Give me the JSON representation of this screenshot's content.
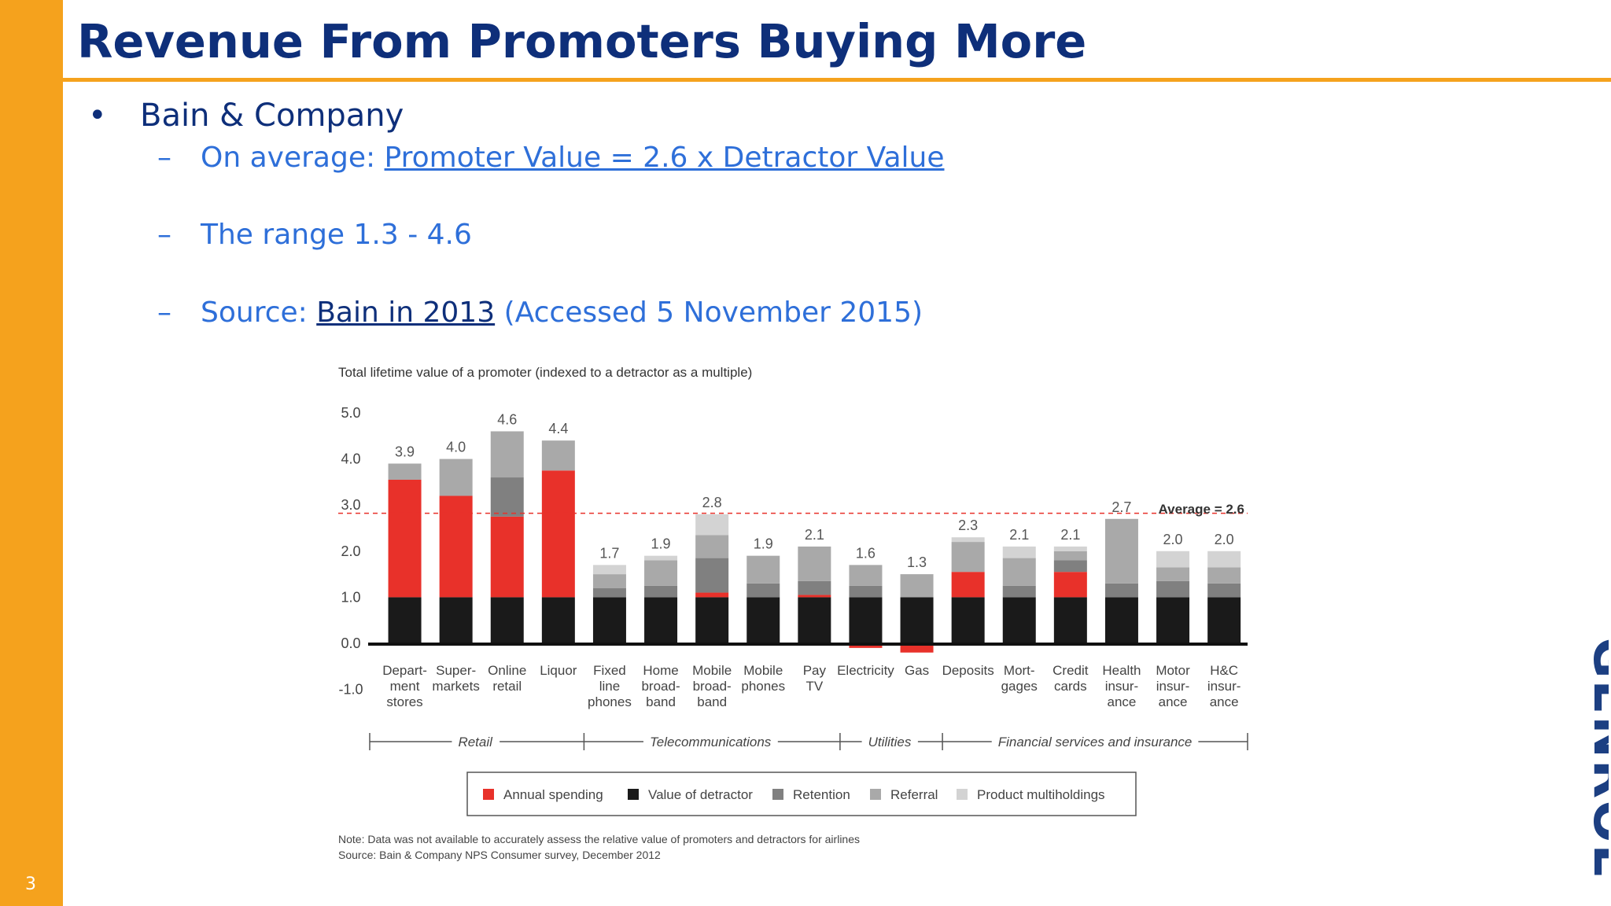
{
  "slide": {
    "title": "Revenue From Promoters Buying More",
    "page_number": "3",
    "accent_color": "#F5A21D",
    "title_color": "#0E2F7A",
    "bullet": "Bain & Company",
    "sub1_prefix": "On average: ",
    "sub1_link": "Promoter Value = 2.6 x Detractor Value",
    "sub2": "The range 1.3 - 4.6",
    "sub3_prefix": "Source: ",
    "sub3_link": "Bain in 2013",
    "sub3_suffix": " (Accessed 5 November 2015)",
    "bullet_marker": "•",
    "dash_marker": "–",
    "logo_text": "GENROE"
  },
  "chart_data": {
    "type": "bar",
    "stacked": true,
    "title": "Total lifetime value of a promoter (indexed to a detractor as a multiple)",
    "ylim": [
      -1.0,
      5.0
    ],
    "yticks": [
      "5.0",
      "4.0",
      "3.0",
      "2.0",
      "1.0",
      "0.0",
      "-1.0"
    ],
    "grid": false,
    "legend_position": "bottom",
    "average": {
      "value": 2.6,
      "label": "Average = 2.6"
    },
    "categories": [
      "Depart- ment stores",
      "Super- markets",
      "Online retail",
      "Liquor",
      "Fixed line phones",
      "Home broad- band",
      "Mobile broad- band",
      "Mobile phones",
      "Pay TV",
      "Electricity",
      "Gas",
      "Deposits",
      "Mort- gages",
      "Credit cards",
      "Health insur- ance",
      "Motor insur- ance",
      "H&C insur- ance"
    ],
    "category_lines": [
      [
        "Depart-",
        "ment",
        "stores"
      ],
      [
        "Super-",
        "markets"
      ],
      [
        "Online",
        "retail"
      ],
      [
        "Liquor"
      ],
      [
        "Fixed",
        "line",
        "phones"
      ],
      [
        "Home",
        "broad-",
        "band"
      ],
      [
        "Mobile",
        "broad-",
        "band"
      ],
      [
        "Mobile",
        "phones"
      ],
      [
        "Pay",
        "TV"
      ],
      [
        "Electricity"
      ],
      [
        "Gas"
      ],
      [
        "Deposits"
      ],
      [
        "Mort-",
        "gages"
      ],
      [
        "Credit",
        "cards"
      ],
      [
        "Health",
        "insur-",
        "ance"
      ],
      [
        "Motor",
        "insur-",
        "ance"
      ],
      [
        "H&C",
        "insur-",
        "ance"
      ]
    ],
    "totals": [
      "3.9",
      "4.0",
      "4.6",
      "4.4",
      "1.7",
      "1.9",
      "2.8",
      "1.9",
      "2.1",
      "1.6",
      "1.3",
      "2.3",
      "2.1",
      "2.1",
      "2.7",
      "2.0",
      "2.0"
    ],
    "series": [
      {
        "name": "Value of detractor",
        "color": "#1a1a1a",
        "values": [
          1.0,
          1.0,
          1.0,
          1.0,
          1.0,
          1.0,
          1.0,
          1.0,
          1.0,
          1.0,
          1.0,
          1.0,
          1.0,
          1.0,
          1.0,
          1.0,
          1.0
        ]
      },
      {
        "name": "Annual spending",
        "color": "#E8312A",
        "values": [
          2.55,
          2.2,
          1.75,
          2.75,
          0,
          0,
          0.1,
          0,
          0.05,
          -0.1,
          -0.2,
          0.55,
          0,
          0.55,
          0,
          0,
          0
        ]
      },
      {
        "name": "Retention",
        "color": "#808080",
        "values": [
          0,
          0,
          0.85,
          0,
          0.2,
          0.25,
          0.75,
          0.3,
          0.3,
          0.25,
          0,
          0,
          0.25,
          0.25,
          0.3,
          0.35,
          0.3
        ]
      },
      {
        "name": "Referral",
        "color": "#A9A9A9",
        "values": [
          0.35,
          0.8,
          1.0,
          0.65,
          0.3,
          0.55,
          0.5,
          0.6,
          0.75,
          0.45,
          0.5,
          0.65,
          0.6,
          0.2,
          1.4,
          0.3,
          0.35
        ]
      },
      {
        "name": "Product multiholdings",
        "color": "#D3D3D3",
        "values": [
          0,
          0,
          0,
          0,
          0.2,
          0.1,
          0.45,
          0,
          0,
          0,
          0,
          0.1,
          0.25,
          0.1,
          0,
          0.35,
          0.35
        ]
      }
    ],
    "legend_order": [
      "Annual spending",
      "Value of detractor",
      "Retention",
      "Referral",
      "Product multiholdings"
    ],
    "groups": [
      {
        "label": "Retail",
        "from": 0,
        "to": 3
      },
      {
        "label": "Telecommunications",
        "from": 4,
        "to": 8
      },
      {
        "label": "Utilities",
        "from": 9,
        "to": 10
      },
      {
        "label": "Financial services and insurance",
        "from": 11,
        "to": 16
      }
    ],
    "notes": [
      "Note: Data was not available to accurately assess the relative value of promoters and detractors for airlines",
      "Source: Bain & Company NPS Consumer survey, December 2012"
    ]
  }
}
